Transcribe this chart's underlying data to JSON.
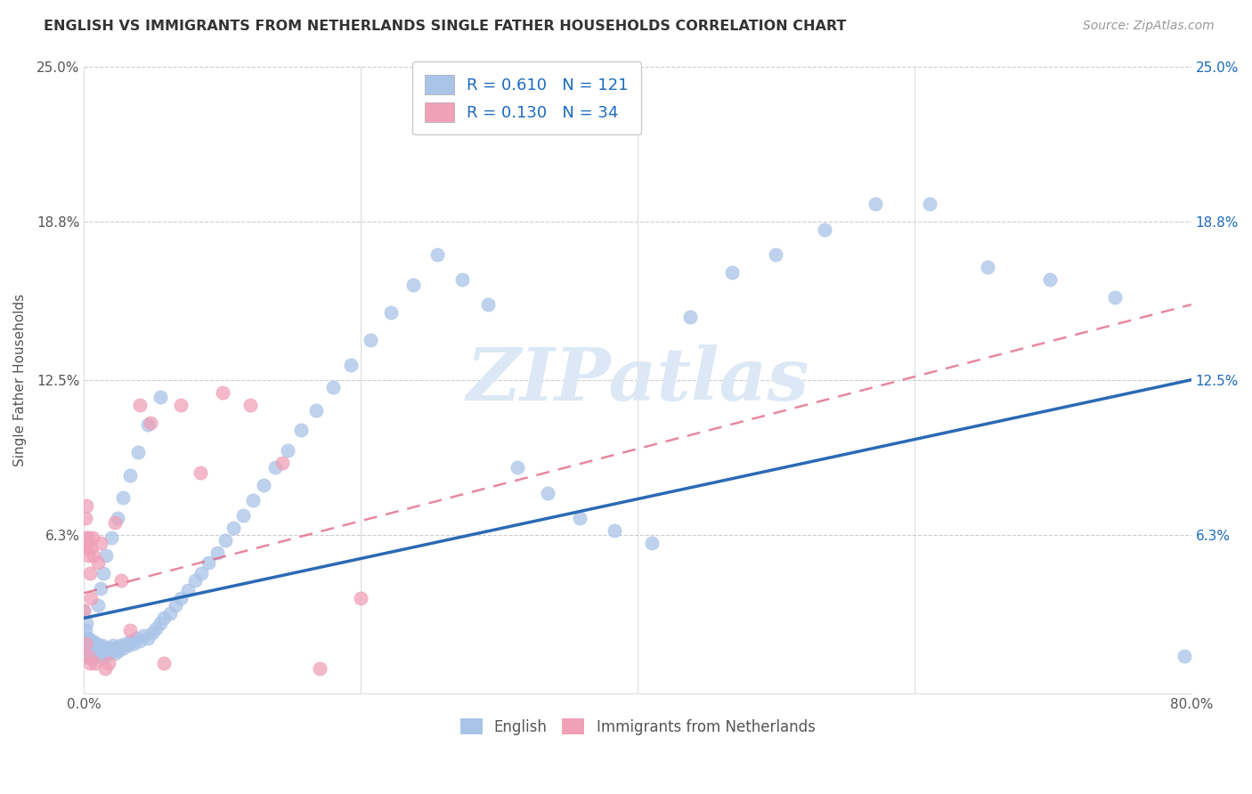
{
  "title": "ENGLISH VS IMMIGRANTS FROM NETHERLANDS SINGLE FATHER HOUSEHOLDS CORRELATION CHART",
  "source": "Source: ZipAtlas.com",
  "ylabel": "Single Father Households",
  "xlim": [
    0.0,
    0.8
  ],
  "ylim": [
    0.0,
    0.25
  ],
  "ytick_vals": [
    0.0,
    0.063,
    0.125,
    0.188,
    0.25
  ],
  "ytick_labels_left": [
    "",
    "6.3%",
    "12.5%",
    "18.8%",
    "25.0%"
  ],
  "ytick_labels_right": [
    "",
    "6.3%",
    "12.5%",
    "18.8%",
    "25.0%"
  ],
  "xtick_vals": [
    0.0,
    0.2,
    0.4,
    0.6,
    0.8
  ],
  "xtick_labels": [
    "0.0%",
    "",
    "",
    "",
    "80.0%"
  ],
  "legend_line1": "R = 0.610   N = 121",
  "legend_line2": "R = 0.130   N = 34",
  "color_english": "#aac4e8",
  "color_netherlands": "#f0a0b8",
  "color_line_english": "#2a6ab5",
  "color_line_netherlands": "#e06080",
  "watermark_text": "ZIPatlas",
  "watermark_color": "#dce8f5",
  "english_x": [
    0.0,
    0.001,
    0.001,
    0.001,
    0.001,
    0.002,
    0.002,
    0.002,
    0.002,
    0.003,
    0.003,
    0.003,
    0.003,
    0.003,
    0.004,
    0.004,
    0.004,
    0.004,
    0.005,
    0.005,
    0.005,
    0.005,
    0.006,
    0.006,
    0.006,
    0.006,
    0.007,
    0.007,
    0.007,
    0.007,
    0.008,
    0.008,
    0.008,
    0.009,
    0.009,
    0.009,
    0.01,
    0.01,
    0.011,
    0.011,
    0.012,
    0.012,
    0.013,
    0.013,
    0.014,
    0.015,
    0.015,
    0.016,
    0.017,
    0.018,
    0.019,
    0.02,
    0.021,
    0.022,
    0.023,
    0.025,
    0.026,
    0.028,
    0.03,
    0.032,
    0.034,
    0.036,
    0.038,
    0.04,
    0.043,
    0.046,
    0.049,
    0.052,
    0.055,
    0.058,
    0.062,
    0.066,
    0.07,
    0.075,
    0.08,
    0.085,
    0.09,
    0.096,
    0.102,
    0.108,
    0.115,
    0.122,
    0.13,
    0.138,
    0.147,
    0.157,
    0.168,
    0.18,
    0.193,
    0.207,
    0.222,
    0.238,
    0.255,
    0.273,
    0.292,
    0.313,
    0.335,
    0.358,
    0.383,
    0.41,
    0.438,
    0.468,
    0.5,
    0.535,
    0.572,
    0.611,
    0.653,
    0.698,
    0.745,
    0.795,
    0.01,
    0.012,
    0.014,
    0.016,
    0.02,
    0.024,
    0.028,
    0.033,
    0.039,
    0.046,
    0.055
  ],
  "english_y": [
    0.033,
    0.021,
    0.018,
    0.02,
    0.025,
    0.019,
    0.022,
    0.016,
    0.028,
    0.018,
    0.02,
    0.015,
    0.022,
    0.017,
    0.014,
    0.019,
    0.016,
    0.021,
    0.017,
    0.02,
    0.015,
    0.018,
    0.016,
    0.019,
    0.014,
    0.021,
    0.016,
    0.018,
    0.015,
    0.02,
    0.017,
    0.019,
    0.015,
    0.016,
    0.018,
    0.02,
    0.015,
    0.017,
    0.016,
    0.019,
    0.015,
    0.018,
    0.016,
    0.019,
    0.017,
    0.015,
    0.018,
    0.016,
    0.017,
    0.016,
    0.018,
    0.017,
    0.019,
    0.016,
    0.018,
    0.017,
    0.019,
    0.018,
    0.02,
    0.019,
    0.021,
    0.02,
    0.022,
    0.021,
    0.023,
    0.022,
    0.024,
    0.026,
    0.028,
    0.03,
    0.032,
    0.035,
    0.038,
    0.041,
    0.045,
    0.048,
    0.052,
    0.056,
    0.061,
    0.066,
    0.071,
    0.077,
    0.083,
    0.09,
    0.097,
    0.105,
    0.113,
    0.122,
    0.131,
    0.141,
    0.152,
    0.163,
    0.175,
    0.165,
    0.155,
    0.09,
    0.08,
    0.07,
    0.065,
    0.06,
    0.15,
    0.168,
    0.175,
    0.185,
    0.195,
    0.195,
    0.17,
    0.165,
    0.158,
    0.015,
    0.035,
    0.042,
    0.048,
    0.055,
    0.062,
    0.07,
    0.078,
    0.087,
    0.096,
    0.107,
    0.118
  ],
  "netherlands_x": [
    0.0,
    0.001,
    0.001,
    0.001,
    0.002,
    0.002,
    0.002,
    0.003,
    0.003,
    0.003,
    0.004,
    0.004,
    0.005,
    0.005,
    0.006,
    0.007,
    0.008,
    0.01,
    0.012,
    0.015,
    0.018,
    0.022,
    0.027,
    0.033,
    0.04,
    0.048,
    0.058,
    0.07,
    0.084,
    0.1,
    0.12,
    0.143,
    0.17,
    0.2
  ],
  "netherlands_y": [
    0.033,
    0.02,
    0.058,
    0.07,
    0.058,
    0.062,
    0.075,
    0.015,
    0.062,
    0.055,
    0.012,
    0.048,
    0.038,
    0.058,
    0.062,
    0.055,
    0.012,
    0.052,
    0.06,
    0.01,
    0.012,
    0.068,
    0.045,
    0.025,
    0.115,
    0.108,
    0.012,
    0.115,
    0.088,
    0.12,
    0.115,
    0.092,
    0.01,
    0.038
  ]
}
